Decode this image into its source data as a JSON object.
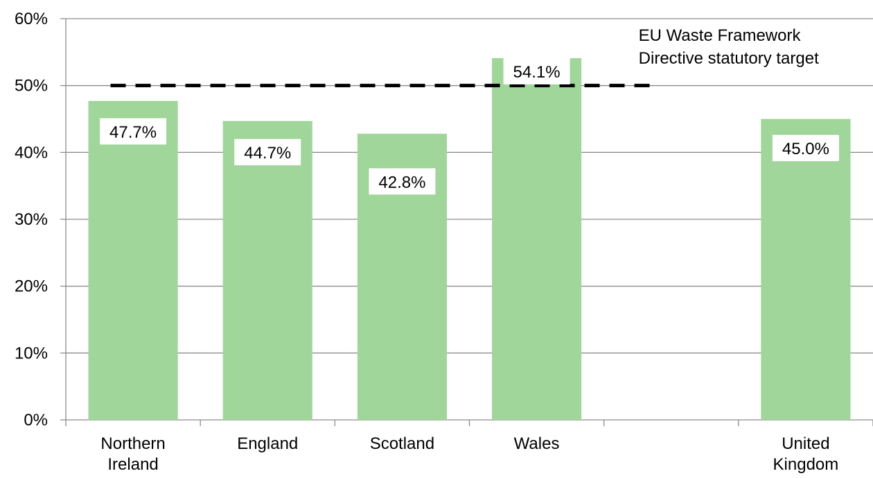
{
  "chart_data": {
    "type": "bar",
    "title": "",
    "xlabel": "",
    "ylabel": "",
    "categories": [
      [
        "Northern",
        "Ireland"
      ],
      [
        "England"
      ],
      [
        "Scotland"
      ],
      [
        "Wales"
      ],
      [],
      [
        "United",
        "Kingdom"
      ]
    ],
    "values": [
      47.7,
      44.7,
      42.8,
      54.1,
      null,
      45.0
    ],
    "data_labels": [
      "47.7%",
      "44.7%",
      "42.8%",
      "54.1%",
      "",
      "45.0%"
    ],
    "ylim": [
      0,
      60
    ],
    "yticks": [
      0,
      10,
      20,
      30,
      40,
      50,
      60
    ],
    "ytick_labels": [
      "0%",
      "10%",
      "20%",
      "30%",
      "40%",
      "50%",
      "60%"
    ],
    "grid": true,
    "colors": {
      "bar": "#a0d69a",
      "grid": "#8c8c8c",
      "target_line": "#000000",
      "label_bg": "#ffffff"
    },
    "target_line": {
      "value": 50,
      "style": "dashed",
      "annotation": [
        "EU Waste Framework",
        "Directive statutory target"
      ]
    }
  }
}
